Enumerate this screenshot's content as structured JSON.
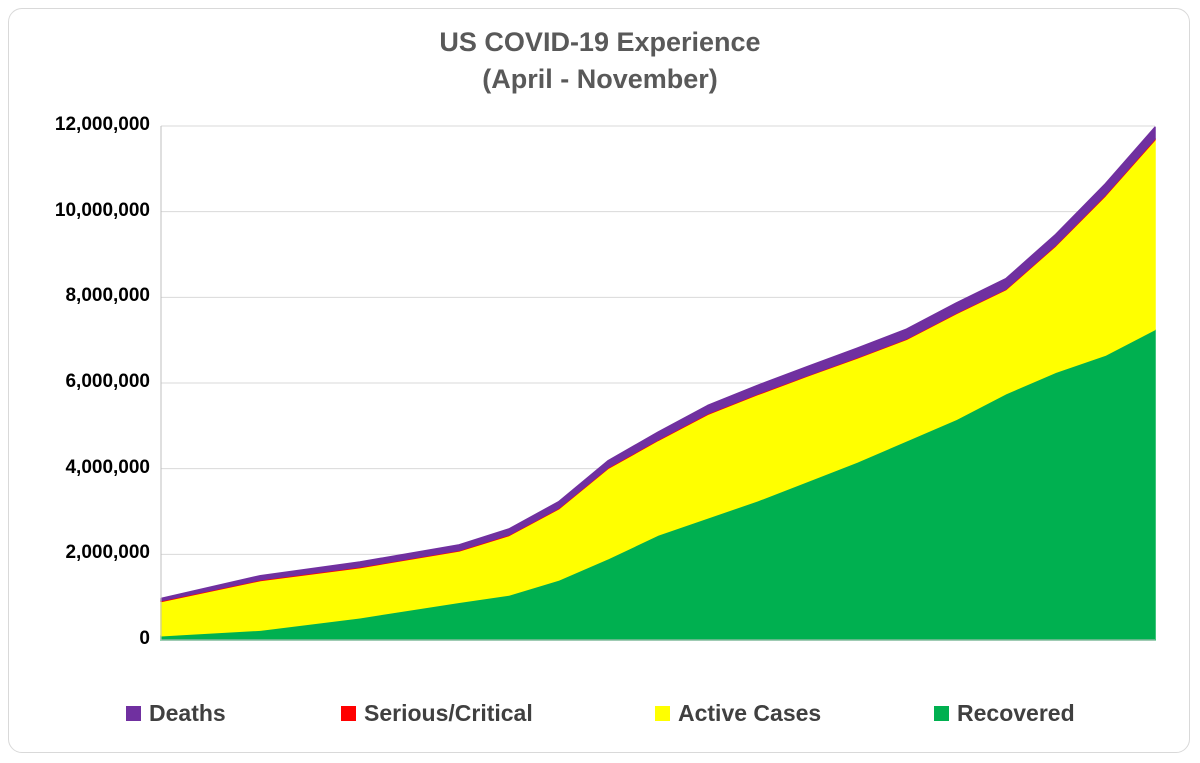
{
  "chart_data": {
    "type": "area",
    "stacked": true,
    "title": "US COVID-19 Experience",
    "subtitle": "(April - November)",
    "ylim": [
      0,
      12000000
    ],
    "y_ticks": [
      "0",
      "2,000,000",
      "4,000,000",
      "6,000,000",
      "8,000,000",
      "10,000,000",
      "12,000,000"
    ],
    "x_time_fractions": [
      0.0,
      0.1,
      0.2,
      0.3,
      0.35,
      0.4,
      0.45,
      0.5,
      0.55,
      0.6,
      0.65,
      0.7,
      0.75,
      0.8,
      0.85,
      0.9,
      0.95,
      1.0
    ],
    "series": [
      {
        "name": "Recovered",
        "color": "#00b050",
        "values": [
          100000,
          230000,
          520000,
          880000,
          1050000,
          1400000,
          1900000,
          2450000,
          2850000,
          3250000,
          3700000,
          4150000,
          4650000,
          5150000,
          5750000,
          6250000,
          6650000,
          7250000
        ]
      },
      {
        "name": "Active Cases",
        "color": "#ffff00",
        "values": [
          800000,
          1160000,
          1170000,
          1200000,
          1390000,
          1660000,
          2110000,
          2210000,
          2420000,
          2480000,
          2460000,
          2430000,
          2370000,
          2470000,
          2430000,
          2950000,
          3720000,
          4430000
        ]
      },
      {
        "name": "Serious/Critical",
        "color": "#ff0000",
        "values": [
          15000,
          16000,
          16000,
          15000,
          16000,
          18000,
          18000,
          17000,
          16000,
          15000,
          14000,
          14000,
          15000,
          16000,
          17000,
          19000,
          21000,
          23000
        ]
      },
      {
        "name": "Deaths",
        "color": "#7030a0",
        "values": [
          55000,
          95000,
          115000,
          125000,
          135000,
          148000,
          160000,
          175000,
          188000,
          198000,
          207000,
          215000,
          222000,
          229000,
          237000,
          248000,
          258000,
          270000
        ]
      }
    ],
    "legend": {
      "position": "bottom",
      "order": [
        "Deaths",
        "Serious/Critical",
        "Active Cases",
        "Recovered"
      ]
    },
    "grid": true
  }
}
